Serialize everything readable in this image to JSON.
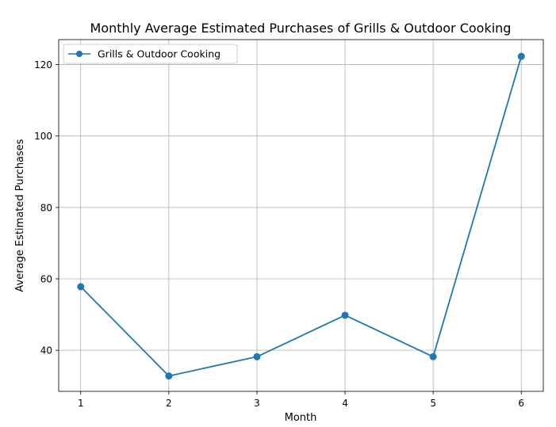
{
  "chart_data": {
    "type": "line",
    "title": "Monthly Average Estimated Purchases of Grills & Outdoor Cooking",
    "xlabel": "Month",
    "ylabel": "Average Estimated Purchases",
    "x": [
      1,
      2,
      3,
      4,
      5,
      6
    ],
    "x_ticks": [
      "1",
      "2",
      "3",
      "4",
      "5",
      "6"
    ],
    "y_ticks": [
      "40",
      "60",
      "80",
      "100",
      "120"
    ],
    "xlim": [
      0.75,
      6.25
    ],
    "ylim": [
      28.5,
      127
    ],
    "grid": true,
    "legend_position": "top-left",
    "series": [
      {
        "name": "Grills & Outdoor Cooking",
        "values": [
          57.8,
          32.8,
          38.2,
          49.8,
          38.2,
          122.3
        ],
        "color": "#1f77b4",
        "marker": "circle"
      }
    ]
  }
}
